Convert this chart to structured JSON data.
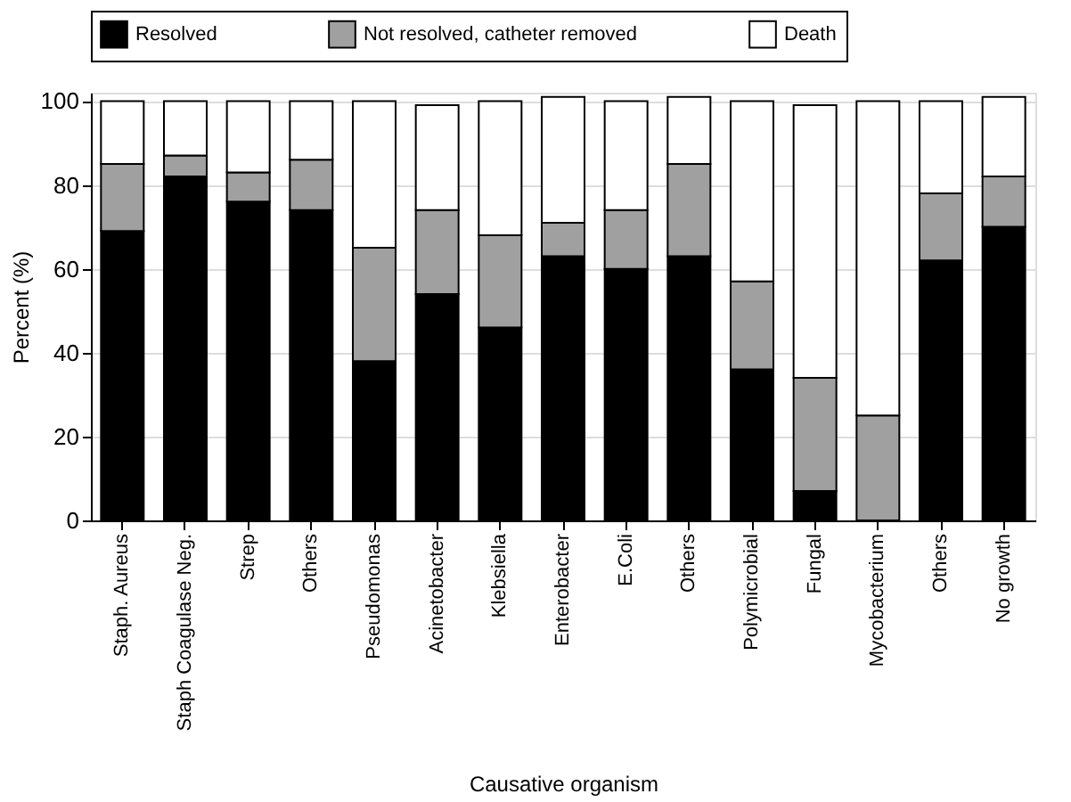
{
  "chart_data": {
    "type": "bar",
    "stacked": true,
    "xlabel": "Causative organism",
    "ylabel": "Percent (%)",
    "categories": [
      "Staph. Aureus",
      "Staph Coagulase Neg.",
      "Strep",
      "Others",
      "Pseudomonas",
      "Acinetobacter",
      "Klebsiella",
      "Enterobacter",
      "E.Coli",
      "Others",
      "Polymicrobial",
      "Fungal",
      "Mycobacterium",
      "Others",
      "No growth"
    ],
    "series": [
      {
        "name": "Resolved",
        "color": "#000000",
        "values": [
          69,
          82,
          76,
          74,
          38,
          54,
          46,
          63,
          60,
          63,
          36,
          7,
          0,
          62,
          70
        ]
      },
      {
        "name": "Not resolved, catheter removed",
        "color": "#a0a0a0",
        "values": [
          16,
          5,
          7,
          12,
          27,
          20,
          22,
          8,
          14,
          22,
          21,
          27,
          25,
          16,
          12
        ]
      },
      {
        "name": "Death",
        "color": "#ffffff",
        "values": [
          15,
          13,
          17,
          14,
          35,
          25,
          32,
          30,
          26,
          16,
          43,
          65,
          75,
          22,
          19
        ]
      }
    ],
    "ylim": [
      0,
      102
    ],
    "yticks": [
      0,
      20,
      40,
      60,
      80,
      100
    ],
    "grid": "y",
    "legend": "top"
  }
}
